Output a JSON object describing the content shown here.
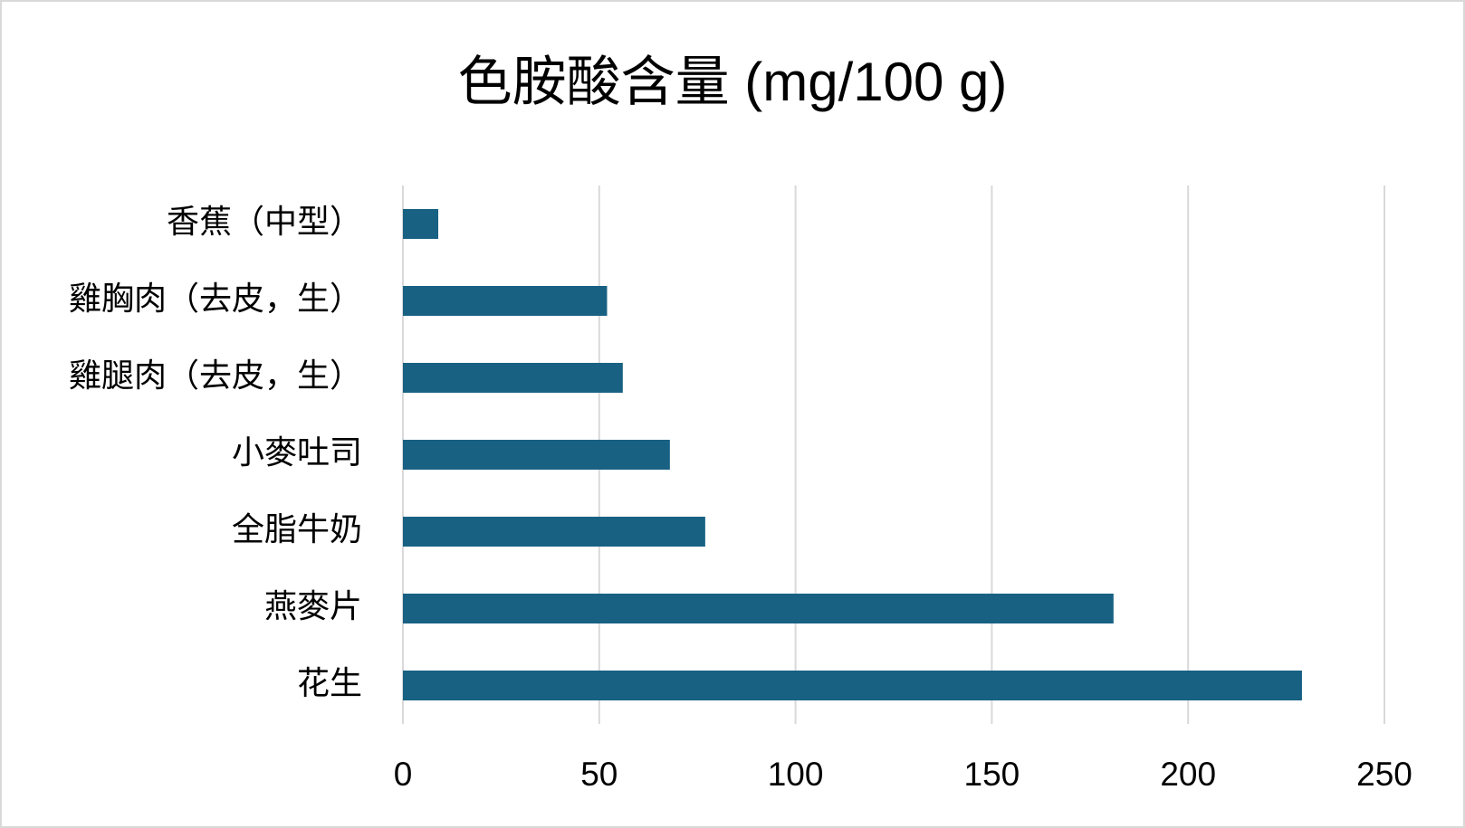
{
  "chart_data": {
    "type": "hbar",
    "title": "色胺酸含量 (mg/100 g)",
    "categories": [
      "香蕉（中型）",
      "雞胸肉（去皮，生）",
      "雞腿肉（去皮，生）",
      "小麥吐司",
      "全脂牛奶",
      "燕麥片",
      "花生"
    ],
    "values": [
      9,
      52,
      56,
      68,
      77,
      181,
      229
    ],
    "color": "#186183",
    "xlim": [
      0,
      250
    ],
    "xticks": [
      0,
      50,
      100,
      150,
      200,
      250
    ],
    "grid": true
  }
}
